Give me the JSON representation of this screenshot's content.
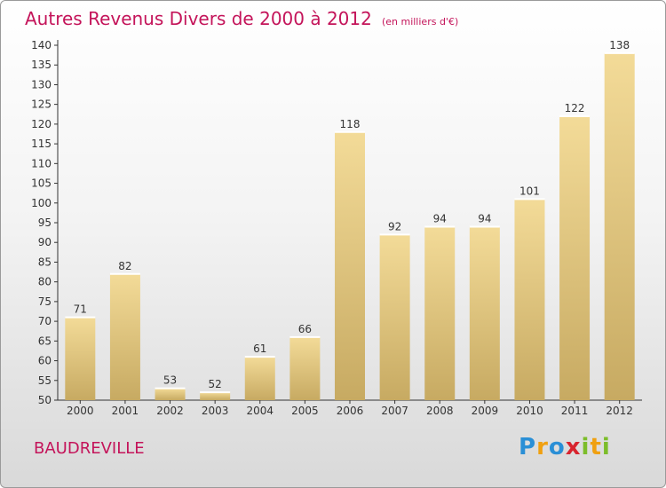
{
  "chart_data": {
    "type": "bar",
    "title": "Autres Revenus Divers de 2000 à 2012",
    "subtitle": "(en milliers d'€)",
    "categories": [
      "2000",
      "2001",
      "2002",
      "2003",
      "2004",
      "2005",
      "2006",
      "2007",
      "2008",
      "2009",
      "2010",
      "2011",
      "2012"
    ],
    "values": [
      71,
      82,
      53,
      52,
      61,
      66,
      118,
      92,
      94,
      94,
      101,
      122,
      138
    ],
    "ylim": [
      50,
      140
    ],
    "ytick_step": 5,
    "grid": false,
    "bar_color_light": "#f3db98",
    "bar_color_dark": "#c7aa62"
  },
  "commune": "BAUDREVILLE",
  "logo": {
    "letters": [
      "P",
      "r",
      "o",
      "x",
      "i",
      "t",
      "i"
    ],
    "colors": [
      "#2a8fd6",
      "#f0a010",
      "#2a8fd6",
      "#d8242e",
      "#7cbd2a",
      "#f0a010",
      "#7cbd2a"
    ]
  },
  "colors": {
    "title": "#c4145a",
    "axis": "#333333"
  }
}
